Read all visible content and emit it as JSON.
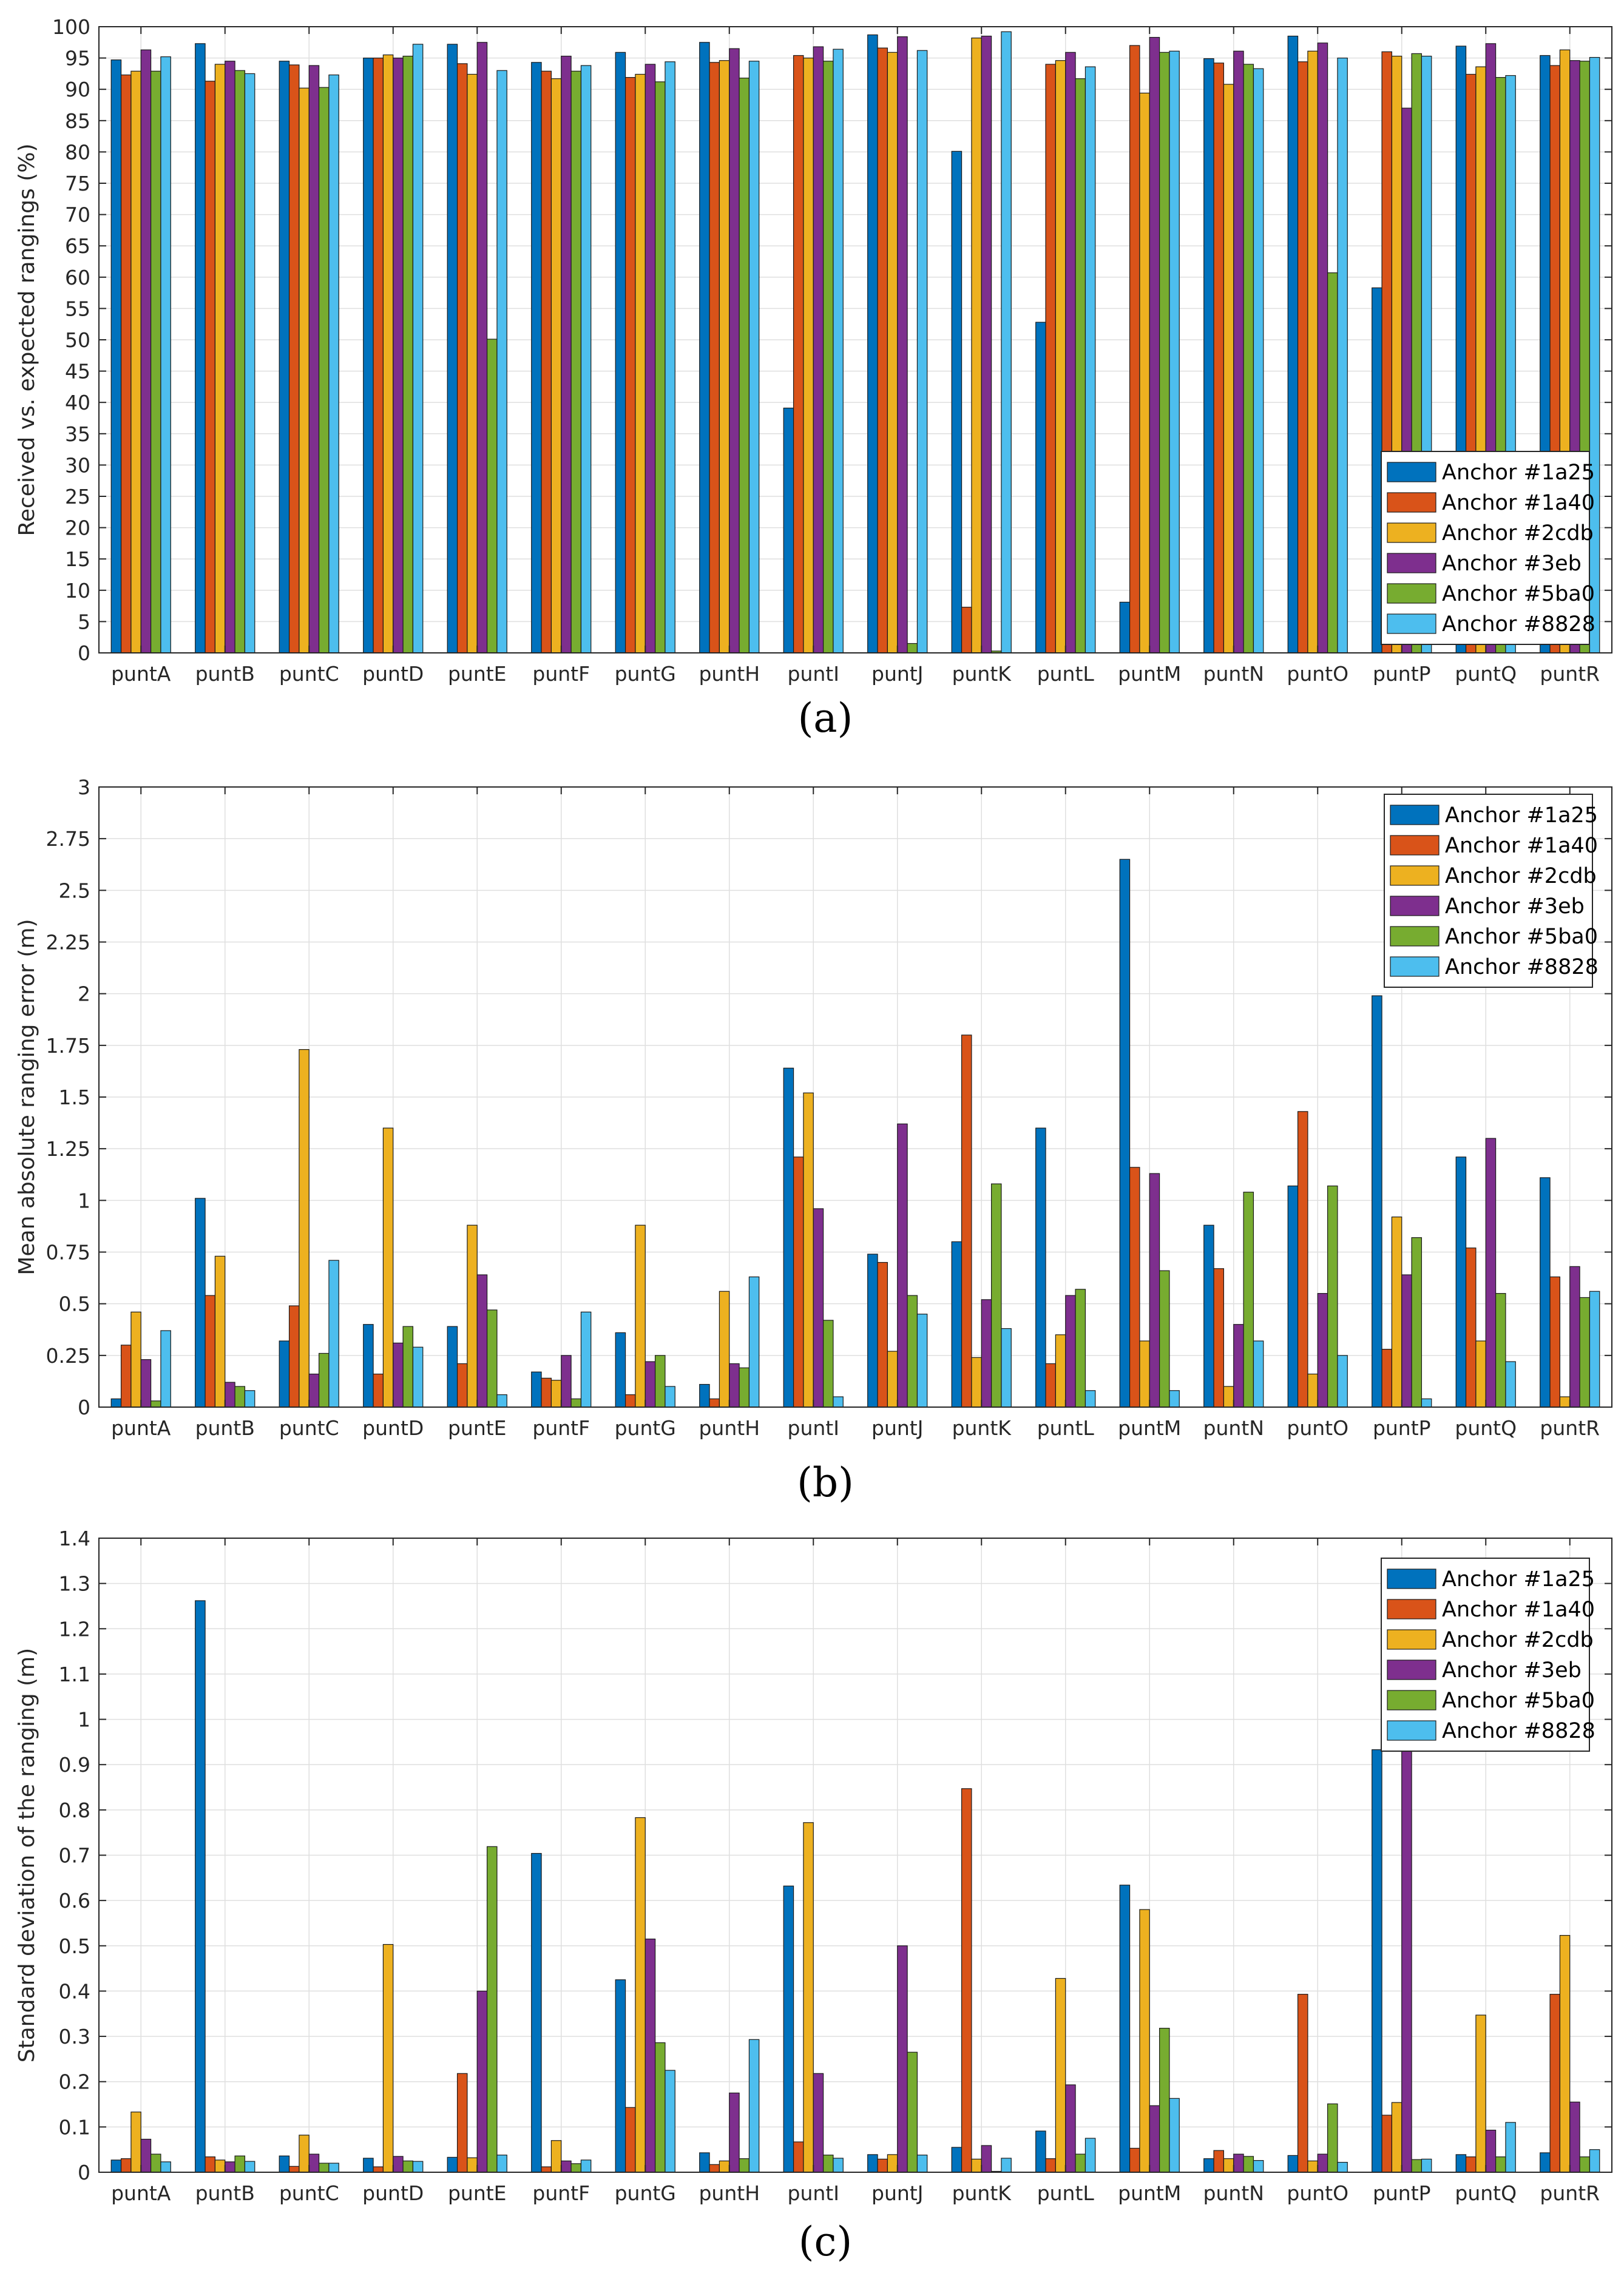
{
  "palette": [
    "#0072BD",
    "#D95319",
    "#EDB120",
    "#7E2F8E",
    "#77AC30",
    "#4DBEEE"
  ],
  "chart_data": [
    {
      "type": "bar",
      "caption": "(a)",
      "ylabel": "Received vs. expected rangings (%)",
      "ylim": [
        0,
        100
      ],
      "yticks": [
        0,
        5,
        10,
        15,
        20,
        25,
        30,
        35,
        40,
        45,
        50,
        55,
        60,
        65,
        70,
        75,
        80,
        85,
        90,
        95,
        100
      ],
      "ytick_labels": [
        "0",
        "5",
        "10",
        "15",
        "20",
        "25",
        "30",
        "35",
        "40",
        "45",
        "50",
        "55",
        "60",
        "65",
        "70",
        "75",
        "80",
        "85",
        "90",
        "95",
        "100"
      ],
      "grid": true,
      "legend_position": "bottom-right",
      "categories": [
        "puntA",
        "puntB",
        "puntC",
        "puntD",
        "puntE",
        "puntF",
        "puntG",
        "puntH",
        "puntI",
        "puntJ",
        "puntK",
        "puntL",
        "puntM",
        "puntN",
        "puntO",
        "puntP",
        "puntQ",
        "puntR"
      ],
      "series": [
        {
          "name": "Anchor #1a25",
          "values": [
            94.7,
            97.3,
            94.5,
            95.0,
            97.2,
            94.3,
            95.9,
            97.5,
            39.1,
            98.7,
            80.1,
            52.8,
            8.1,
            94.9,
            98.5,
            58.3,
            96.9,
            95.4
          ]
        },
        {
          "name": "Anchor #1a40",
          "values": [
            92.3,
            91.3,
            93.9,
            95.0,
            94.1,
            92.9,
            91.9,
            94.3,
            95.4,
            96.6,
            7.3,
            94.0,
            97.0,
            94.2,
            94.4,
            96.0,
            92.4,
            93.8
          ]
        },
        {
          "name": "Anchor #2cdb",
          "values": [
            92.9,
            94.0,
            90.2,
            95.5,
            92.4,
            91.7,
            92.4,
            94.6,
            95.0,
            95.9,
            98.2,
            94.6,
            89.4,
            90.8,
            96.1,
            95.3,
            93.6,
            96.3
          ]
        },
        {
          "name": "Anchor #3eb",
          "values": [
            96.3,
            94.5,
            93.8,
            95.0,
            97.5,
            95.3,
            94.0,
            96.5,
            96.8,
            98.4,
            98.5,
            95.9,
            98.3,
            96.1,
            97.4,
            87.0,
            97.3,
            94.6
          ]
        },
        {
          "name": "Anchor #5ba0",
          "values": [
            92.9,
            93.0,
            90.3,
            95.3,
            50.1,
            92.9,
            91.2,
            91.8,
            94.5,
            1.5,
            0.3,
            91.7,
            95.9,
            94.0,
            60.7,
            95.7,
            91.9,
            94.5
          ]
        },
        {
          "name": "Anchor #8828",
          "values": [
            95.2,
            92.5,
            92.3,
            97.2,
            93.0,
            93.8,
            94.4,
            94.5,
            96.4,
            96.2,
            99.2,
            93.6,
            96.1,
            93.3,
            95.0,
            95.3,
            92.2,
            95.1
          ]
        }
      ]
    },
    {
      "type": "bar",
      "caption": "(b)",
      "ylabel": "Mean absolute ranging error (m)",
      "ylim": [
        0,
        3
      ],
      "yticks": [
        0,
        0.25,
        0.5,
        0.75,
        1,
        1.25,
        1.5,
        1.75,
        2,
        2.25,
        2.5,
        2.75,
        3
      ],
      "ytick_labels": [
        "0",
        "0.25",
        "0.5",
        "0.75",
        "1",
        "1.25",
        "1.5",
        "1.75",
        "2",
        "2.25",
        "2.5",
        "2.75",
        "3"
      ],
      "grid": true,
      "legend_position": "top-right",
      "categories": [
        "puntA",
        "puntB",
        "puntC",
        "puntD",
        "puntE",
        "puntF",
        "puntG",
        "puntH",
        "puntI",
        "puntJ",
        "puntK",
        "puntL",
        "puntM",
        "puntN",
        "puntO",
        "puntP",
        "puntQ",
        "puntR"
      ],
      "series": [
        {
          "name": "Anchor #1a25",
          "values": [
            0.04,
            1.01,
            0.32,
            0.4,
            0.39,
            0.17,
            0.36,
            0.11,
            1.64,
            0.74,
            0.8,
            1.35,
            2.65,
            0.88,
            1.07,
            1.99,
            1.21,
            1.11
          ]
        },
        {
          "name": "Anchor #1a40",
          "values": [
            0.3,
            0.54,
            0.49,
            0.16,
            0.21,
            0.14,
            0.06,
            0.04,
            1.21,
            0.7,
            1.8,
            0.21,
            1.16,
            0.67,
            1.43,
            0.28,
            0.77,
            0.63
          ]
        },
        {
          "name": "Anchor #2cdb",
          "values": [
            0.46,
            0.73,
            1.73,
            1.35,
            0.88,
            0.13,
            0.88,
            0.56,
            1.52,
            0.27,
            0.24,
            0.35,
            0.32,
            0.1,
            0.16,
            0.92,
            0.32,
            0.05
          ]
        },
        {
          "name": "Anchor #3eb",
          "values": [
            0.23,
            0.12,
            0.16,
            0.31,
            0.64,
            0.25,
            0.22,
            0.21,
            0.96,
            1.37,
            0.52,
            0.54,
            1.13,
            0.4,
            0.55,
            0.64,
            1.3,
            0.68
          ]
        },
        {
          "name": "Anchor #5ba0",
          "values": [
            0.03,
            0.1,
            0.26,
            0.39,
            0.47,
            0.04,
            0.25,
            0.19,
            0.42,
            0.54,
            1.08,
            0.57,
            0.66,
            1.04,
            1.07,
            0.82,
            0.55,
            0.53
          ]
        },
        {
          "name": "Anchor #8828",
          "values": [
            0.37,
            0.08,
            0.71,
            0.29,
            0.06,
            0.46,
            0.1,
            0.63,
            0.05,
            0.45,
            0.38,
            0.08,
            0.08,
            0.32,
            0.25,
            0.04,
            0.22,
            0.56
          ]
        }
      ]
    },
    {
      "type": "bar",
      "caption": "(c)",
      "ylabel": "Standard deviation of the ranging (m)",
      "ylim": [
        0,
        1.4
      ],
      "yticks": [
        0,
        0.1,
        0.2,
        0.3,
        0.4,
        0.5,
        0.6,
        0.7,
        0.8,
        0.9,
        1,
        1.1,
        1.2,
        1.3,
        1.4
      ],
      "ytick_labels": [
        "0",
        "0.1",
        "0.2",
        "0.3",
        "0.4",
        "0.5",
        "0.6",
        "0.7",
        "0.8",
        "0.9",
        "1",
        "1.1",
        "1.2",
        "1.3",
        "1.4"
      ],
      "grid": true,
      "legend_position": "top-right",
      "categories": [
        "puntA",
        "puntB",
        "puntC",
        "puntD",
        "puntE",
        "puntF",
        "puntG",
        "puntH",
        "puntI",
        "puntJ",
        "puntK",
        "puntL",
        "puntM",
        "puntN",
        "puntO",
        "puntP",
        "puntQ",
        "puntR"
      ],
      "series": [
        {
          "name": "Anchor #1a25",
          "values": [
            0.027,
            1.262,
            0.036,
            0.031,
            0.033,
            0.704,
            0.425,
            0.043,
            0.632,
            0.039,
            0.055,
            0.091,
            0.634,
            0.03,
            0.037,
            0.933,
            0.039,
            0.043
          ]
        },
        {
          "name": "Anchor #1a40",
          "values": [
            0.03,
            0.034,
            0.013,
            0.012,
            0.218,
            0.012,
            0.143,
            0.017,
            0.067,
            0.029,
            0.847,
            0.03,
            0.053,
            0.048,
            0.393,
            0.126,
            0.034,
            0.393
          ]
        },
        {
          "name": "Anchor #2cdb",
          "values": [
            0.133,
            0.027,
            0.082,
            0.503,
            0.032,
            0.07,
            0.783,
            0.025,
            0.772,
            0.039,
            0.029,
            0.428,
            0.58,
            0.03,
            0.025,
            0.154,
            0.347,
            0.523
          ]
        },
        {
          "name": "Anchor #3eb",
          "values": [
            0.073,
            0.023,
            0.04,
            0.035,
            0.4,
            0.025,
            0.515,
            0.175,
            0.218,
            0.5,
            0.059,
            0.193,
            0.147,
            0.04,
            0.04,
            0.94,
            0.093,
            0.155
          ]
        },
        {
          "name": "Anchor #5ba0",
          "values": [
            0.04,
            0.036,
            0.02,
            0.025,
            0.719,
            0.019,
            0.286,
            0.03,
            0.038,
            0.265,
            0.002,
            0.04,
            0.318,
            0.035,
            0.151,
            0.028,
            0.034,
            0.034
          ]
        },
        {
          "name": "Anchor #8828",
          "values": [
            0.023,
            0.024,
            0.02,
            0.024,
            0.038,
            0.027,
            0.225,
            0.293,
            0.031,
            0.038,
            0.031,
            0.075,
            0.163,
            0.026,
            0.022,
            0.029,
            0.11,
            0.05
          ]
        }
      ]
    }
  ]
}
